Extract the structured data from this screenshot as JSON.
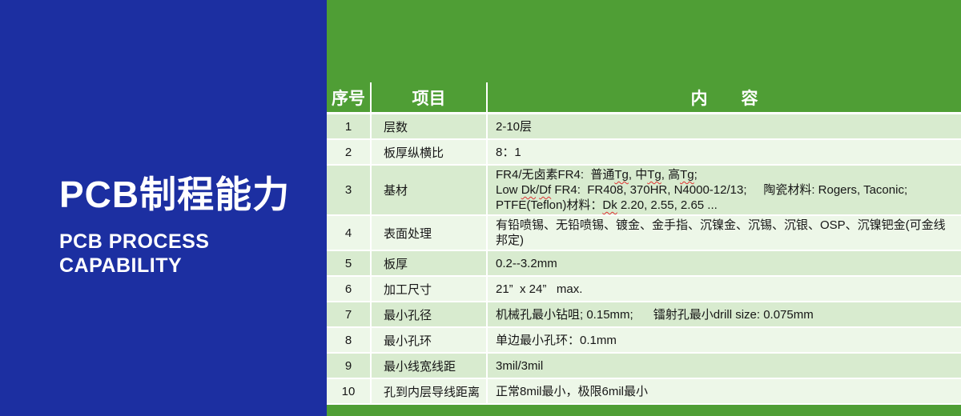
{
  "colors": {
    "panel_blue": "#1c2fa1",
    "panel_green": "#4f9e35",
    "row_odd_green": "#d8ebcf",
    "row_even_green": "#edf7e8",
    "header_text": "#ffffff",
    "squiggle_red": "#e03131"
  },
  "left_panel": {
    "title": "PCB制程能力",
    "subtitle_lines": [
      "PCB PROCESS",
      "CAPABILITY"
    ]
  },
  "table": {
    "headers": [
      "序号",
      "项目",
      "内　　容"
    ],
    "rows": [
      {
        "no": "1",
        "item": "层数",
        "content": [
          [
            {
              "t": "2-10层"
            }
          ]
        ]
      },
      {
        "no": "2",
        "item": "板厚纵横比",
        "content": [
          [
            {
              "t": "8：1"
            }
          ]
        ]
      },
      {
        "no": "3",
        "item": "基材",
        "content": [
          [
            {
              "t": "FR4/无卤素FR4:  普通"
            },
            {
              "t": "Tg",
              "u": true
            },
            {
              "t": ", 中"
            },
            {
              "t": "Tg",
              "u": true
            },
            {
              "t": ", 高"
            },
            {
              "t": "Tg",
              "u": true
            },
            {
              "t": ";"
            }
          ],
          [
            {
              "t": "Low "
            },
            {
              "t": "Dk",
              "u": true
            },
            {
              "t": "/"
            },
            {
              "t": "Df",
              "u": true
            },
            {
              "t": " FR4:  FR408, 370HR, N4000-12/13;     陶瓷材料: Rogers, Taconic;"
            }
          ],
          [
            {
              "t": "PTFE(Teflon)材料："
            },
            {
              "t": "Dk",
              "u": true
            },
            {
              "t": " 2.20, 2.55, 2.65 ..."
            }
          ]
        ]
      },
      {
        "no": "4",
        "item": "表面处理",
        "content": [
          [
            {
              "t": "有铅喷锡、无铅喷锡、镀金、金手指、沉镍金、沉锡、沉银、OSP、沉镍钯金(可金线邦定)"
            }
          ]
        ]
      },
      {
        "no": "5",
        "item": "板厚",
        "content": [
          [
            {
              "t": "0.2--3.2mm"
            }
          ]
        ]
      },
      {
        "no": "6",
        "item": "加工尺寸",
        "content": [
          [
            {
              "t": "21”  x 24”   max."
            }
          ]
        ]
      },
      {
        "no": "7",
        "item": "最小孔径",
        "content": [
          [
            {
              "t": "机械孔最小钻咀; 0.15mm;      镭射孔最小drill size: 0.075mm"
            }
          ]
        ]
      },
      {
        "no": "8",
        "item": "最小孔环",
        "content": [
          [
            {
              "t": "单边最小孔环：0.1mm"
            }
          ]
        ]
      },
      {
        "no": "9",
        "item": "最小线宽线距",
        "content": [
          [
            {
              "t": "3mil/3mil"
            }
          ]
        ]
      },
      {
        "no": "10",
        "item": "孔到内层导线距离",
        "content": [
          [
            {
              "t": "正常8mil最小，极限6mil最小"
            }
          ]
        ]
      }
    ]
  }
}
